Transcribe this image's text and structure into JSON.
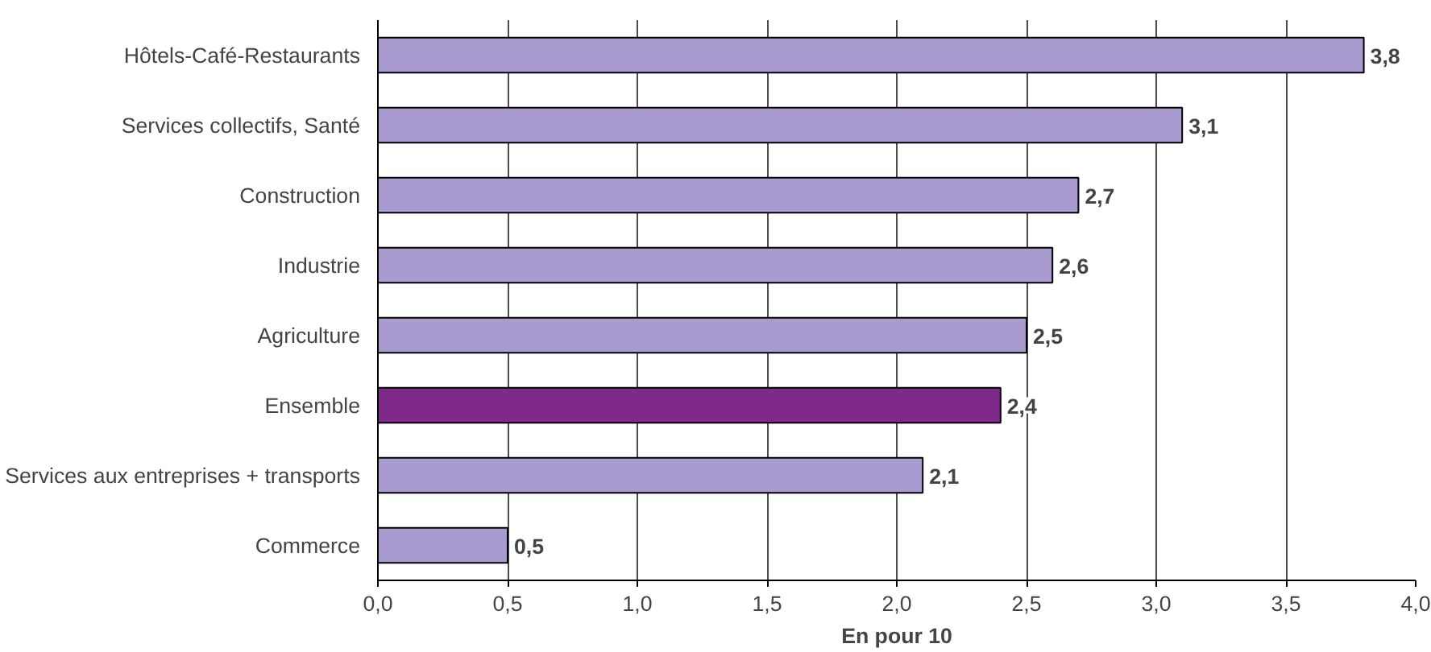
{
  "chart_data": {
    "type": "bar",
    "orientation": "horizontal",
    "xlabel": "En pour 10",
    "categories": [
      "Hôtels-Café-Restaurants",
      "Services collectifs, Santé",
      "Construction",
      "Industrie",
      "Agriculture",
      "Ensemble",
      "Services aux entreprises + transports",
      "Commerce"
    ],
    "values": [
      3.8,
      3.1,
      2.7,
      2.6,
      2.5,
      2.4,
      2.1,
      0.5
    ],
    "value_labels": [
      "3,8",
      "3,1",
      "2,7",
      "2,6",
      "2,5",
      "2,4",
      "2,1",
      "0,5"
    ],
    "colors": [
      "#a99bd0",
      "#a99bd0",
      "#a99bd0",
      "#a99bd0",
      "#a99bd0",
      "#7f2a88",
      "#a99bd0",
      "#a99bd0"
    ],
    "xlim": [
      0,
      4
    ],
    "xticks": [
      {
        "value": 0,
        "label": "0,0"
      },
      {
        "value": 0.5,
        "label": "0,5"
      },
      {
        "value": 1,
        "label": "1,0"
      },
      {
        "value": 1.5,
        "label": "1,5"
      },
      {
        "value": 2,
        "label": "2,0"
      },
      {
        "value": 2.5,
        "label": "2,5"
      },
      {
        "value": 3,
        "label": "3,0"
      },
      {
        "value": 3.5,
        "label": "3,5"
      },
      {
        "value": 4,
        "label": "4,0"
      }
    ],
    "grid": "x"
  }
}
